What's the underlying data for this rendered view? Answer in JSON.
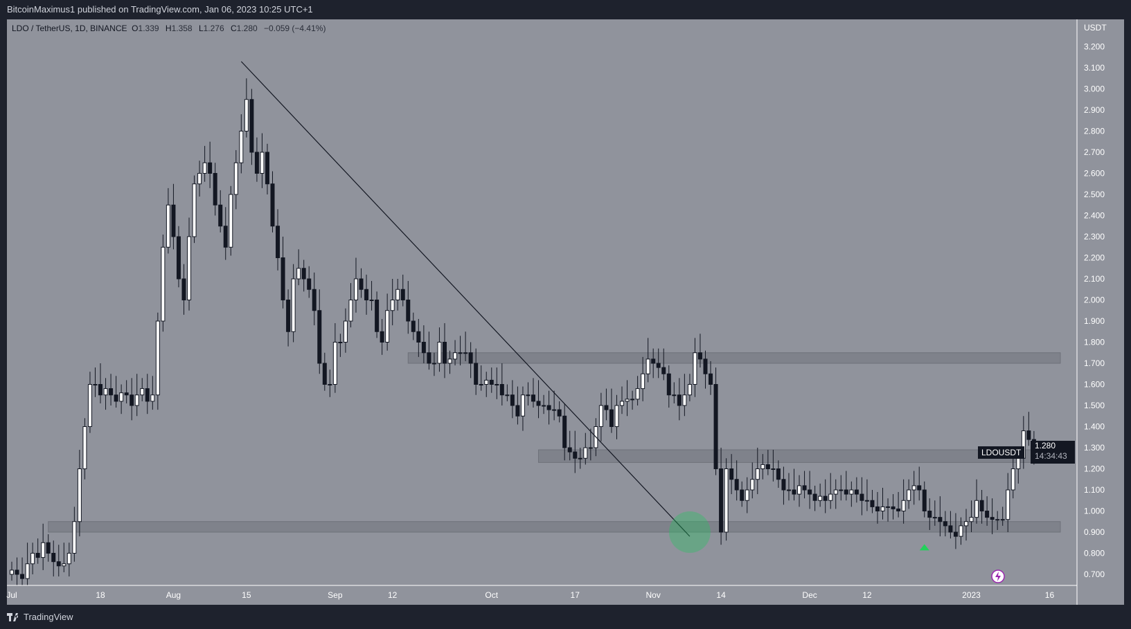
{
  "header": {
    "published": "BitcoinMaximus1 published on TradingView.com, Jan 06, 2023 10:25 UTC+1"
  },
  "legend": {
    "symbol": "LDO / TetherUS, 1D, BINANCE",
    "o_label": "O",
    "o": "1.339",
    "h_label": "H",
    "h": "1.358",
    "l_label": "L",
    "l": "1.276",
    "c_label": "C",
    "c": "1.280",
    "change": "−0.059 (−4.41%)"
  },
  "last_price": {
    "symbol": "LDOUSDT",
    "price": "1.280",
    "countdown": "14:34:43"
  },
  "footer": {
    "brand": "TradingView"
  },
  "colors": {
    "chart_bg": "#90939c",
    "up": "#ffffff",
    "down": "#131722",
    "zone": "#7b7e87",
    "marker": "#22c55e"
  },
  "chart_data": {
    "type": "candlestick",
    "title": "LDO / TetherUS, 1D, BINANCE",
    "ylabel": "USDT",
    "ylim": [
      0.65,
      3.3
    ],
    "y_ticks": [
      "3.200",
      "3.100",
      "3.000",
      "2.900",
      "2.800",
      "2.700",
      "2.600",
      "2.500",
      "2.400",
      "2.300",
      "2.200",
      "2.100",
      "2.000",
      "1.900",
      "1.800",
      "1.700",
      "1.600",
      "1.500",
      "1.400",
      "1.300",
      "1.200",
      "1.100",
      "1.000",
      "0.900",
      "0.800",
      "0.700"
    ],
    "x_ticks": [
      "Jul",
      "18",
      "Aug",
      "15",
      "Sep",
      "12",
      "Oct",
      "17",
      "Nov",
      "14",
      "Dec",
      "12",
      "2023",
      "16"
    ],
    "x_tick_days": [
      0,
      17,
      31,
      45,
      62,
      73,
      92,
      108,
      123,
      136,
      153,
      164,
      184,
      199
    ],
    "first_date": "2022-07-01",
    "last_date": "2023-01-06",
    "closes": [
      0.72,
      0.7,
      0.68,
      0.75,
      0.8,
      0.78,
      0.85,
      0.8,
      0.76,
      0.74,
      0.75,
      0.8,
      0.95,
      1.2,
      1.4,
      1.6,
      1.6,
      1.55,
      1.58,
      1.55,
      1.52,
      1.56,
      1.55,
      1.5,
      1.55,
      1.58,
      1.52,
      1.55,
      1.9,
      2.25,
      2.45,
      2.3,
      2.1,
      2.0,
      2.3,
      2.55,
      2.6,
      2.65,
      2.6,
      2.45,
      2.35,
      2.25,
      2.5,
      2.65,
      2.8,
      2.95,
      2.7,
      2.6,
      2.7,
      2.55,
      2.35,
      2.2,
      2.0,
      1.85,
      2.1,
      2.15,
      2.1,
      2.05,
      1.95,
      1.7,
      1.6,
      1.6,
      1.8,
      1.8,
      1.9,
      2.0,
      2.1,
      2.05,
      2.0,
      2.0,
      1.85,
      1.8,
      1.95,
      2.0,
      2.05,
      2.0,
      1.9,
      1.85,
      1.8,
      1.75,
      1.7,
      1.7,
      1.8,
      1.7,
      1.72,
      1.75,
      1.75,
      1.75,
      1.7,
      1.6,
      1.6,
      1.62,
      1.6,
      1.6,
      1.55,
      1.55,
      1.5,
      1.45,
      1.55,
      1.55,
      1.52,
      1.5,
      1.5,
      1.48,
      1.48,
      1.45,
      1.3,
      1.28,
      1.25,
      1.25,
      1.3,
      1.3,
      1.4,
      1.5,
      1.48,
      1.4,
      1.5,
      1.52,
      1.53,
      1.53,
      1.58,
      1.65,
      1.72,
      1.7,
      1.68,
      1.65,
      1.55,
      1.55,
      1.5,
      1.55,
      1.6,
      1.75,
      1.72,
      1.65,
      1.6,
      1.2,
      0.9,
      1.2,
      1.15,
      1.1,
      1.05,
      1.1,
      1.15,
      1.2,
      1.22,
      1.2,
      1.2,
      1.15,
      1.1,
      1.1,
      1.08,
      1.12,
      1.1,
      1.08,
      1.05,
      1.07,
      1.05,
      1.08,
      1.1,
      1.1,
      1.08,
      1.1,
      1.08,
      1.05,
      1.05,
      1.02,
      1.0,
      1.02,
      1.02,
      1.01,
      1.0,
      1.05,
      1.1,
      1.12,
      1.1,
      1.0,
      0.97,
      0.97,
      0.95,
      0.93,
      0.9,
      0.88,
      0.93,
      0.95,
      0.97,
      1.05,
      1.0,
      0.97,
      0.96,
      0.96,
      0.96,
      1.1,
      1.2,
      1.25,
      1.38,
      1.339,
      1.28
    ],
    "zones": [
      {
        "low": 1.7,
        "high": 1.75,
        "from_day": 76
      },
      {
        "low": 1.23,
        "high": 1.29,
        "from_day": 101
      },
      {
        "low": 0.9,
        "high": 0.95,
        "from_day": 7
      }
    ],
    "trendline": {
      "from": {
        "day": 44,
        "price": 3.13
      },
      "to": {
        "day": 130,
        "price": 0.88
      }
    },
    "markers": [
      {
        "type": "circle",
        "day": 130,
        "price": 0.9
      },
      {
        "type": "up-arrow",
        "day": 175,
        "price": 0.83
      }
    ]
  }
}
